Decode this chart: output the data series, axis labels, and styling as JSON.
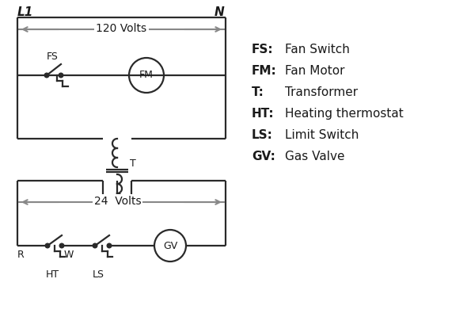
{
  "bg_color": "#ffffff",
  "line_color": "#2a2a2a",
  "arrow_color": "#888888",
  "text_color": "#1a1a1a",
  "legend_items": [
    [
      "FS:",
      "   Fan Switch"
    ],
    [
      "FM:",
      " Fan Motor"
    ],
    [
      "T:",
      "       Transformer"
    ],
    [
      "HT:",
      "   Heating thermostat"
    ],
    [
      "LS:",
      "   Limit Switch"
    ],
    [
      "GV:",
      "  Gas Valve"
    ]
  ],
  "title_L1": "L1",
  "title_N": "N",
  "volts_120": "120 Volts",
  "volts_24": "24  Volts",
  "label_FS": "FS",
  "label_FM": "FM",
  "label_T": "T",
  "label_R": "R",
  "label_W": "W",
  "label_HT": "HT",
  "label_LS": "LS",
  "label_GV": "GV"
}
